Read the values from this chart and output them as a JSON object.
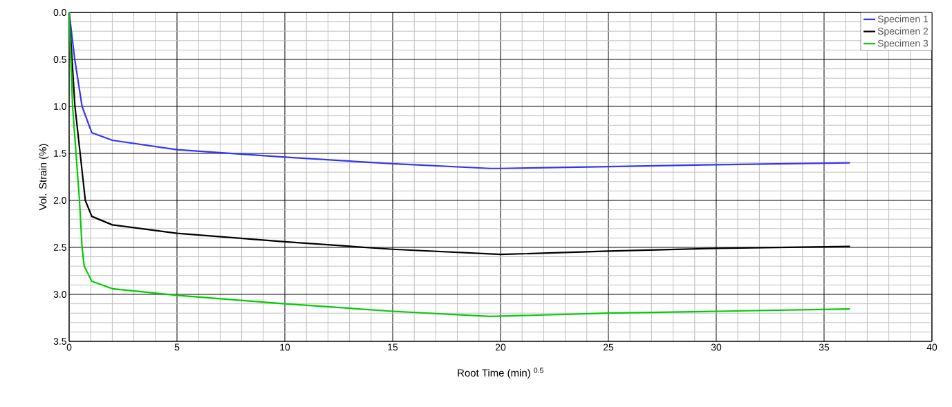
{
  "chart_data": {
    "type": "line",
    "xlabel": "Root Time (min) $^{0.5}$",
    "ylabel": "Vol. Strain (%)",
    "xlim": [
      0,
      40
    ],
    "xticks": [
      0,
      5,
      10,
      15,
      20,
      25,
      30,
      35,
      40
    ],
    "ylim": [
      3.5,
      0
    ],
    "yticks": [
      {
        "value": 0,
        "label": "0.0"
      },
      {
        "value": 0.5,
        "label": "0.5"
      },
      {
        "value": 1,
        "label": "1.0"
      },
      {
        "value": 1.5,
        "label": "1.5"
      },
      {
        "value": 2,
        "label": "2.0"
      },
      {
        "value": 2.5,
        "label": "2.5"
      },
      {
        "value": 3,
        "label": "3.0"
      },
      {
        "value": 3.5,
        "label": "3.5"
      }
    ],
    "grid": true,
    "legend": "top right",
    "marker": "none",
    "line_style": "solid",
    "series": [
      {
        "name": "Specimen 1",
        "color": "#3333ff",
        "x": [
          0,
          0.26,
          0.6,
          1.05,
          2,
          5,
          10,
          15,
          19.5,
          20,
          25,
          30,
          36.2
        ],
        "values": [
          0,
          0.5,
          1.0,
          1.28,
          1.36,
          1.46,
          1.54,
          1.61,
          1.66,
          1.66,
          1.64,
          1.62,
          1.6
        ]
      },
      {
        "name": "Specimen 2",
        "color": "#000000",
        "x": [
          0,
          0.27,
          0.75,
          1.05,
          2,
          5,
          10,
          15,
          20,
          25,
          30,
          36.2
        ],
        "values": [
          0,
          1.0,
          2.0,
          2.17,
          2.26,
          2.35,
          2.44,
          2.52,
          2.575,
          2.54,
          2.51,
          2.49
        ]
      },
      {
        "name": "Specimen 3",
        "color": "#00cc00",
        "x": [
          0,
          0.16,
          0.48,
          0.6,
          0.7,
          1.05,
          2,
          5,
          10,
          15,
          19.5,
          25,
          30,
          36.2
        ],
        "values": [
          0,
          1.0,
          2.0,
          2.5,
          2.7,
          2.86,
          2.94,
          3.01,
          3.1,
          3.18,
          3.235,
          3.2,
          3.18,
          3.155
        ]
      }
    ]
  }
}
